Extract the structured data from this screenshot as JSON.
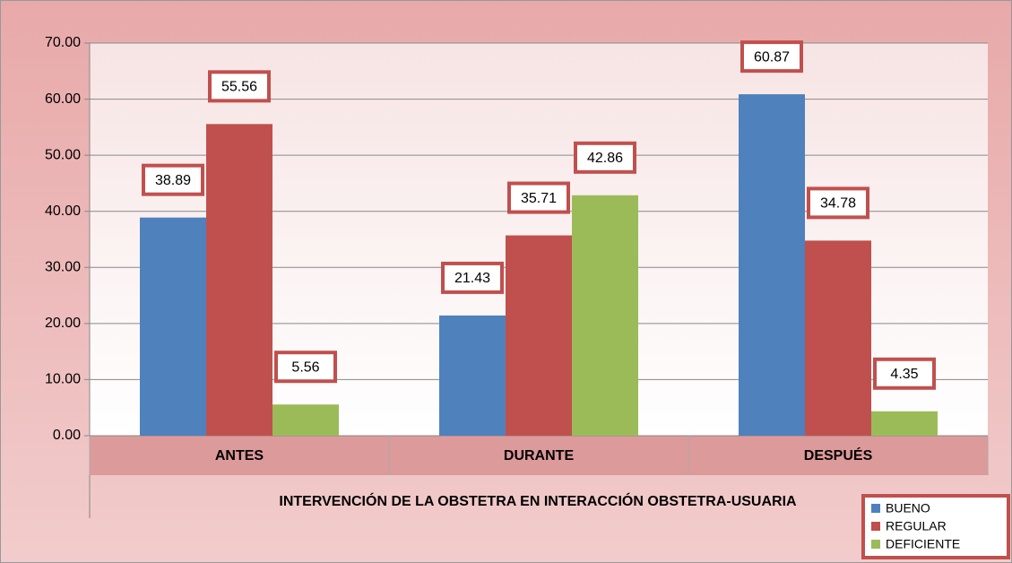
{
  "chart_data": {
    "type": "bar",
    "xlabel": "INTERVENCIÓN DE LA OBSTETRA EN INTERACCIÓN OBSTETRA-USUARIA",
    "categories": [
      "ANTES",
      "DURANTE",
      "DESPUÉS"
    ],
    "series": [
      {
        "name": "BUENO",
        "color": "#4f81bd",
        "values": [
          38.89,
          21.43,
          60.87
        ]
      },
      {
        "name": "REGULAR",
        "color": "#c0504d",
        "values": [
          55.56,
          35.71,
          34.78
        ]
      },
      {
        "name": "DEFICIENTE",
        "color": "#9bbb59",
        "values": [
          5.56,
          42.86,
          4.35
        ]
      }
    ],
    "ylim": [
      0,
      70
    ],
    "yticks": [
      {
        "value": 0,
        "label": "0.00"
      },
      {
        "value": 10,
        "label": "10.00"
      },
      {
        "value": 20,
        "label": "20.00"
      },
      {
        "value": 30,
        "label": "30.00"
      },
      {
        "value": 40,
        "label": "40.00"
      },
      {
        "value": 50,
        "label": "50.00"
      },
      {
        "value": 60,
        "label": "60.00"
      },
      {
        "value": 70,
        "label": "70.00"
      }
    ],
    "grid": true,
    "legend": "lower right",
    "data_labels": true
  }
}
